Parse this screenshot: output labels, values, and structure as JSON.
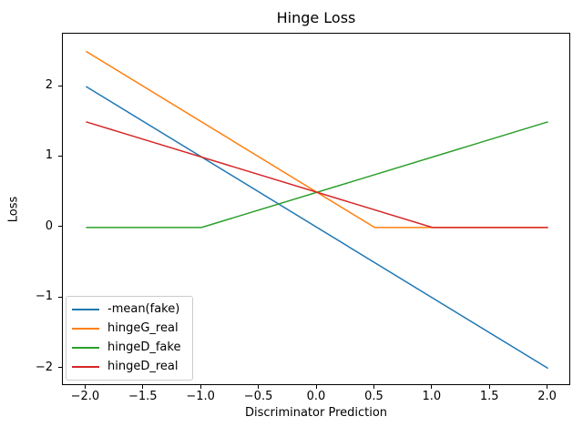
{
  "chart_data": {
    "type": "line",
    "title": "Hinge Loss",
    "xlabel": "Discriminator Prediction",
    "ylabel": "Loss",
    "xlim": [
      -2.2,
      2.2
    ],
    "ylim": [
      -2.25,
      2.75
    ],
    "grid": false,
    "legend_position": "lower left",
    "x_ticks": {
      "values": [
        -2,
        -1.5,
        -1,
        -0.5,
        0,
        0.5,
        1,
        1.5,
        2
      ],
      "labels": [
        "−2.0",
        "−1.5",
        "−1.0",
        "−0.5",
        "0.0",
        "0.5",
        "1.0",
        "1.5",
        "2.0"
      ]
    },
    "y_ticks": {
      "values": [
        2,
        1,
        0,
        -1,
        -2
      ],
      "labels": [
        "2",
        "1",
        "0",
        "−1",
        "−2"
      ]
    },
    "x_sample_points": [
      -2,
      -1.5,
      -1,
      -0.5,
      0,
      0.5,
      1,
      1.5,
      2
    ],
    "series": [
      {
        "name": "-mean(fake)",
        "color": "#1f77b4",
        "points": [
          [
            -2,
            2
          ],
          [
            2,
            -2
          ]
        ],
        "values_at_sample_points": [
          2,
          1.5,
          1,
          0.5,
          0,
          -0.5,
          -1,
          -1.5,
          -2
        ]
      },
      {
        "name": "hingeG_real",
        "color": "#ff7f0e",
        "points": [
          [
            -2,
            2.5
          ],
          [
            0.5,
            0
          ],
          [
            2,
            0
          ]
        ],
        "values_at_sample_points": [
          2.5,
          2,
          1.5,
          1,
          0.5,
          0,
          0,
          0,
          0
        ]
      },
      {
        "name": "hingeD_fake",
        "color": "#2ca02c",
        "points": [
          [
            -2,
            0
          ],
          [
            -1,
            0
          ],
          [
            2,
            1.5
          ]
        ],
        "values_at_sample_points": [
          0,
          0,
          0,
          0.25,
          0.5,
          0.75,
          1,
          1.25,
          1.5
        ]
      },
      {
        "name": "hingeD_real",
        "color": "#d62728",
        "points": [
          [
            -2,
            1.5
          ],
          [
            1,
            0
          ],
          [
            2,
            0
          ]
        ],
        "values_at_sample_points": [
          1.5,
          1.25,
          1,
          0.75,
          0.5,
          0.25,
          0,
          0,
          0
        ]
      }
    ]
  }
}
